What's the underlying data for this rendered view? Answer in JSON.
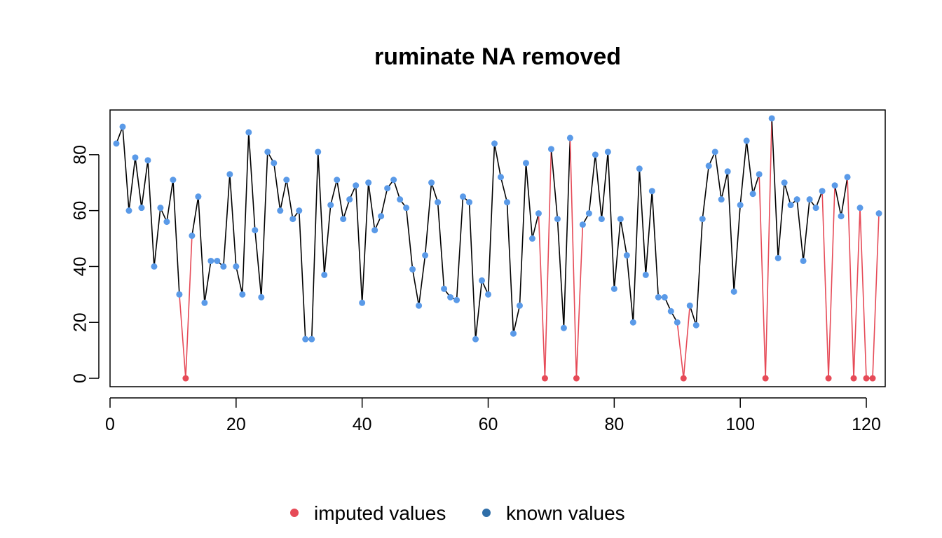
{
  "chart_data": {
    "type": "line",
    "title": "ruminate NA removed",
    "xlabel": "",
    "ylabel": "",
    "xlim": [
      0,
      123
    ],
    "ylim": [
      -3,
      96
    ],
    "x_ticks": [
      0,
      20,
      40,
      60,
      80,
      100,
      120
    ],
    "y_ticks": [
      0,
      20,
      40,
      60,
      80
    ],
    "grid": false,
    "legend_position": "bottom",
    "legend": [
      {
        "label": "imputed values",
        "color": "#e64a57"
      },
      {
        "label": "known values",
        "color": "#2f6ea8"
      }
    ],
    "colors": {
      "imputed": "#e64a57",
      "known_point": "#5a9ae8",
      "known_line": "#000000"
    },
    "x": [
      1,
      2,
      3,
      4,
      5,
      6,
      7,
      8,
      9,
      10,
      11,
      12,
      13,
      14,
      15,
      16,
      17,
      18,
      19,
      20,
      21,
      22,
      23,
      24,
      25,
      26,
      27,
      28,
      29,
      30,
      31,
      32,
      33,
      34,
      35,
      36,
      37,
      38,
      39,
      40,
      41,
      42,
      43,
      44,
      45,
      46,
      47,
      48,
      49,
      50,
      51,
      52,
      53,
      54,
      55,
      56,
      57,
      58,
      59,
      60,
      61,
      62,
      63,
      64,
      65,
      66,
      67,
      68,
      69,
      70,
      71,
      72,
      73,
      74,
      75,
      76,
      77,
      78,
      79,
      80,
      81,
      82,
      83,
      84,
      85,
      86,
      87,
      88,
      89,
      90,
      91,
      92,
      93,
      94,
      95,
      96,
      97,
      98,
      99,
      100,
      101,
      102,
      103,
      104,
      105,
      106,
      107,
      108,
      109,
      110,
      111,
      112,
      113,
      114,
      115,
      116,
      117,
      118,
      119,
      120,
      121,
      122
    ],
    "values": [
      84,
      90,
      60,
      79,
      61,
      78,
      40,
      61,
      56,
      71,
      30,
      0,
      51,
      65,
      27,
      42,
      42,
      40,
      73,
      40,
      30,
      88,
      53,
      29,
      81,
      77,
      60,
      71,
      57,
      60,
      14,
      14,
      81,
      37,
      62,
      71,
      57,
      64,
      69,
      27,
      70,
      53,
      58,
      68,
      71,
      64,
      61,
      39,
      26,
      44,
      70,
      63,
      32,
      29,
      28,
      65,
      63,
      14,
      35,
      30,
      84,
      72,
      63,
      16,
      26,
      77,
      50,
      59,
      0,
      82,
      57,
      18,
      86,
      0,
      55,
      59,
      80,
      57,
      81,
      32,
      57,
      44,
      20,
      75,
      37,
      67,
      29,
      29,
      24,
      20,
      0,
      26,
      19,
      57,
      76,
      81,
      64,
      74,
      31,
      62,
      85,
      66,
      73,
      0,
      93,
      43,
      70,
      62,
      64,
      42,
      64,
      61,
      67,
      0,
      69,
      58,
      72,
      0,
      61,
      0,
      0,
      59
    ],
    "imputed_index": [
      12,
      69,
      74,
      91,
      104,
      114,
      118,
      120,
      121
    ]
  }
}
